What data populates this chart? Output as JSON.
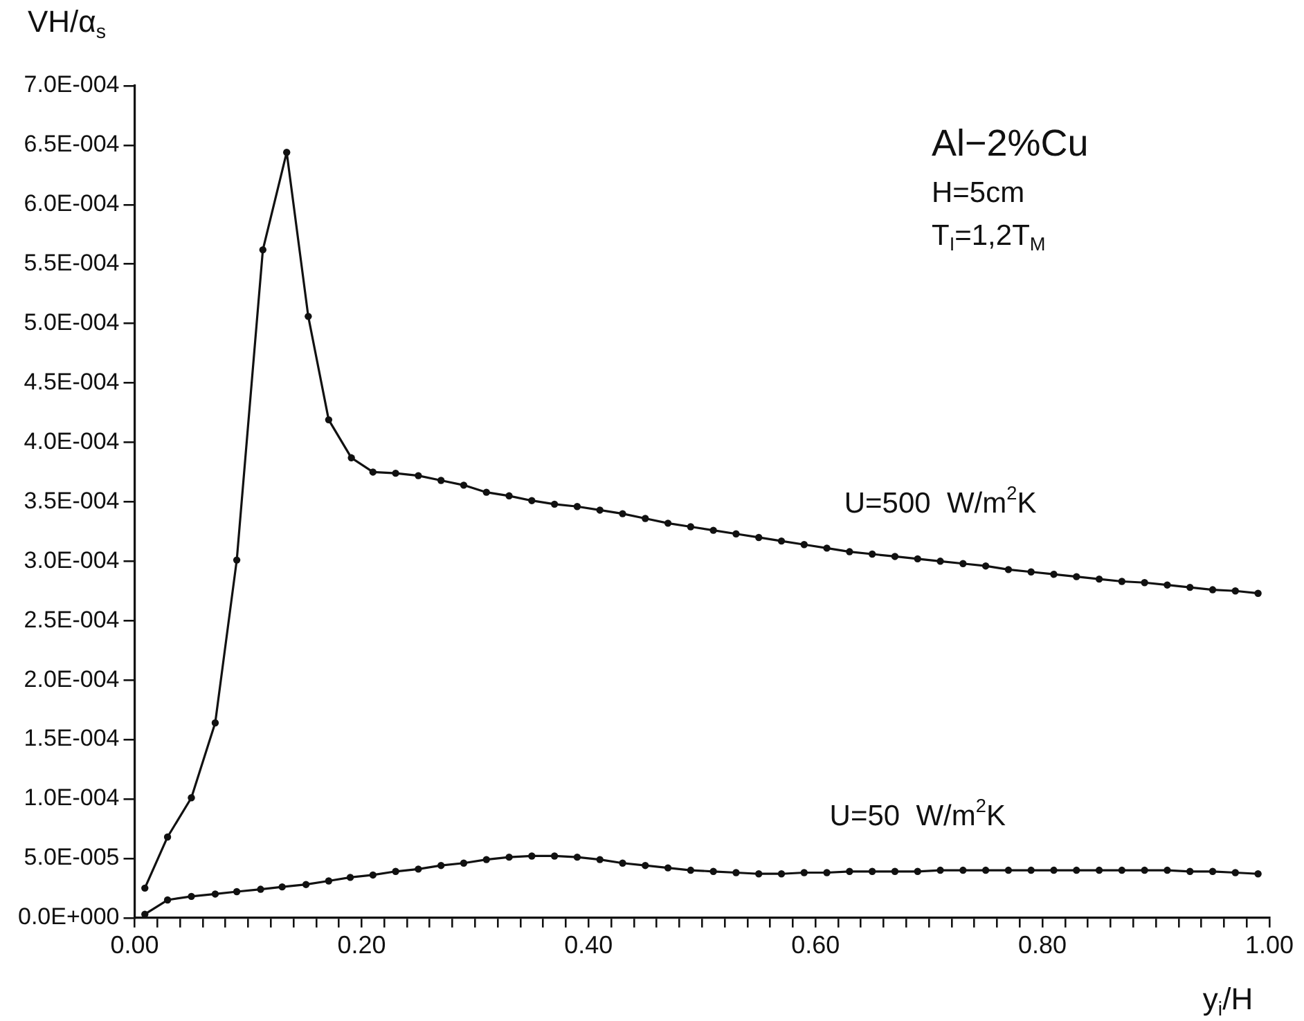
{
  "chart_data": {
    "type": "line",
    "xlabel": "y$_{i}$/H",
    "ylabel": "VH/α$_{s}$",
    "xlim": [
      0,
      1
    ],
    "xticks": [
      {
        "value": 0,
        "label": "0.00"
      },
      {
        "value": 0.02,
        "label": null
      },
      {
        "value": 0.04,
        "label": null
      },
      {
        "value": 0.06,
        "label": null
      },
      {
        "value": 0.08,
        "label": null
      },
      {
        "value": 0.1,
        "label": null
      },
      {
        "value": 0.12,
        "label": null
      },
      {
        "value": 0.14,
        "label": null
      },
      {
        "value": 0.16,
        "label": null
      },
      {
        "value": 0.18,
        "label": null
      },
      {
        "value": 0.2,
        "label": "0.20"
      },
      {
        "value": 0.22,
        "label": null
      },
      {
        "value": 0.24,
        "label": null
      },
      {
        "value": 0.26,
        "label": null
      },
      {
        "value": 0.28,
        "label": null
      },
      {
        "value": 0.3,
        "label": null
      },
      {
        "value": 0.32,
        "label": null
      },
      {
        "value": 0.34,
        "label": null
      },
      {
        "value": 0.36,
        "label": null
      },
      {
        "value": 0.38,
        "label": null
      },
      {
        "value": 0.4,
        "label": "0.40"
      },
      {
        "value": 0.42,
        "label": null
      },
      {
        "value": 0.44,
        "label": null
      },
      {
        "value": 0.46,
        "label": null
      },
      {
        "value": 0.48,
        "label": null
      },
      {
        "value": 0.5,
        "label": null
      },
      {
        "value": 0.52,
        "label": null
      },
      {
        "value": 0.54,
        "label": null
      },
      {
        "value": 0.56,
        "label": null
      },
      {
        "value": 0.58,
        "label": null
      },
      {
        "value": 0.6,
        "label": "0.60"
      },
      {
        "value": 0.62,
        "label": null
      },
      {
        "value": 0.64,
        "label": null
      },
      {
        "value": 0.66,
        "label": null
      },
      {
        "value": 0.68,
        "label": null
      },
      {
        "value": 0.7,
        "label": null
      },
      {
        "value": 0.72,
        "label": null
      },
      {
        "value": 0.74,
        "label": null
      },
      {
        "value": 0.76,
        "label": null
      },
      {
        "value": 0.78,
        "label": null
      },
      {
        "value": 0.8,
        "label": "0.80"
      },
      {
        "value": 0.82,
        "label": null
      },
      {
        "value": 0.84,
        "label": null
      },
      {
        "value": 0.86,
        "label": null
      },
      {
        "value": 0.88,
        "label": null
      },
      {
        "value": 0.9,
        "label": null
      },
      {
        "value": 0.92,
        "label": null
      },
      {
        "value": 0.94,
        "label": null
      },
      {
        "value": 0.96,
        "label": null
      },
      {
        "value": 0.98,
        "label": null
      },
      {
        "value": 1,
        "label": "1.00"
      }
    ],
    "ylim": [
      0,
      0.0007
    ],
    "yticks": [
      {
        "value": 0,
        "label": "0.0E+000"
      },
      {
        "value": 5e-05,
        "label": "5.0E-005"
      },
      {
        "value": 0.0001,
        "label": "1.0E-004"
      },
      {
        "value": 0.00015,
        "label": "1.5E-004"
      },
      {
        "value": 0.0002,
        "label": "2.0E-004"
      },
      {
        "value": 0.00025,
        "label": "2.5E-004"
      },
      {
        "value": 0.0003,
        "label": "3.0E-004"
      },
      {
        "value": 0.00035,
        "label": "3.5E-004"
      },
      {
        "value": 0.0004,
        "label": "4.0E-004"
      },
      {
        "value": 0.00045,
        "label": "4.5E-004"
      },
      {
        "value": 0.0005,
        "label": "5.0E-004"
      },
      {
        "value": 0.00055,
        "label": "5.5E-004"
      },
      {
        "value": 0.0006,
        "label": "6.0E-004"
      },
      {
        "value": 0.00065,
        "label": "6.5E-004"
      },
      {
        "value": 0.0007,
        "label": "7.0E-004"
      }
    ],
    "grid": false,
    "legend": false,
    "marker": "circle",
    "line_style": "solid",
    "series": [
      {
        "color": "#111111",
        "x": [
          0.009,
          0.029,
          0.05,
          0.071,
          0.09,
          0.113,
          0.134,
          0.153,
          0.171,
          0.191,
          0.21,
          0.23,
          0.25,
          0.27,
          0.29,
          0.31,
          0.33,
          0.35,
          0.37,
          0.39,
          0.41,
          0.43,
          0.45,
          0.47,
          0.49,
          0.51,
          0.53,
          0.55,
          0.57,
          0.59,
          0.61,
          0.63,
          0.65,
          0.67,
          0.69,
          0.71,
          0.73,
          0.75,
          0.77,
          0.79,
          0.81,
          0.83,
          0.85,
          0.87,
          0.89,
          0.91,
          0.93,
          0.95,
          0.97,
          0.99
        ],
        "values": [
          2.5e-05,
          6.8e-05,
          0.000101,
          0.000164,
          0.000301,
          0.000562,
          0.000644,
          0.000506,
          0.000419,
          0.000387,
          0.000375,
          0.000374,
          0.000372,
          0.000368,
          0.000364,
          0.000358,
          0.000355,
          0.000351,
          0.000348,
          0.000346,
          0.000343,
          0.00034,
          0.000336,
          0.000332,
          0.000329,
          0.000326,
          0.000323,
          0.00032,
          0.000317,
          0.000314,
          0.000311,
          0.000308,
          0.000306,
          0.000304,
          0.000302,
          0.0003,
          0.000298,
          0.000296,
          0.000293,
          0.000291,
          0.000289,
          0.000287,
          0.000285,
          0.000283,
          0.000282,
          0.00028,
          0.000278,
          0.000276,
          0.000275,
          0.000273
        ]
      },
      {
        "color": "#111111",
        "x": [
          0.009,
          0.029,
          0.05,
          0.071,
          0.09,
          0.111,
          0.13,
          0.151,
          0.171,
          0.19,
          0.21,
          0.23,
          0.25,
          0.27,
          0.29,
          0.31,
          0.33,
          0.35,
          0.37,
          0.39,
          0.41,
          0.43,
          0.45,
          0.47,
          0.49,
          0.51,
          0.53,
          0.55,
          0.57,
          0.59,
          0.61,
          0.63,
          0.65,
          0.67,
          0.69,
          0.71,
          0.73,
          0.75,
          0.77,
          0.79,
          0.81,
          0.83,
          0.85,
          0.87,
          0.89,
          0.91,
          0.93,
          0.95,
          0.97,
          0.99
        ],
        "values": [
          3e-06,
          1.5e-05,
          1.8e-05,
          2e-05,
          2.2e-05,
          2.4e-05,
          2.6e-05,
          2.8e-05,
          3.1e-05,
          3.4e-05,
          3.6e-05,
          3.9e-05,
          4.1e-05,
          4.4e-05,
          4.6e-05,
          4.9e-05,
          5.1e-05,
          5.2e-05,
          5.2e-05,
          5.1e-05,
          4.9e-05,
          4.6e-05,
          4.4e-05,
          4.2e-05,
          4e-05,
          3.9e-05,
          3.8e-05,
          3.7e-05,
          3.7e-05,
          3.8e-05,
          3.8e-05,
          3.9e-05,
          3.9e-05,
          3.9e-05,
          3.9e-05,
          4e-05,
          4e-05,
          4e-05,
          4e-05,
          4e-05,
          4e-05,
          4e-05,
          4e-05,
          4e-05,
          4e-05,
          4e-05,
          3.9e-05,
          3.9e-05,
          3.8e-05,
          3.7e-05
        ]
      }
    ],
    "annotations": [
      "Al−2%Cu",
      "H=5cm",
      "T$_{I}$=1,2T$_{M}$",
      "U=500  W/m$^{2}$K",
      "U=50  W/m$^{2}$K"
    ]
  }
}
